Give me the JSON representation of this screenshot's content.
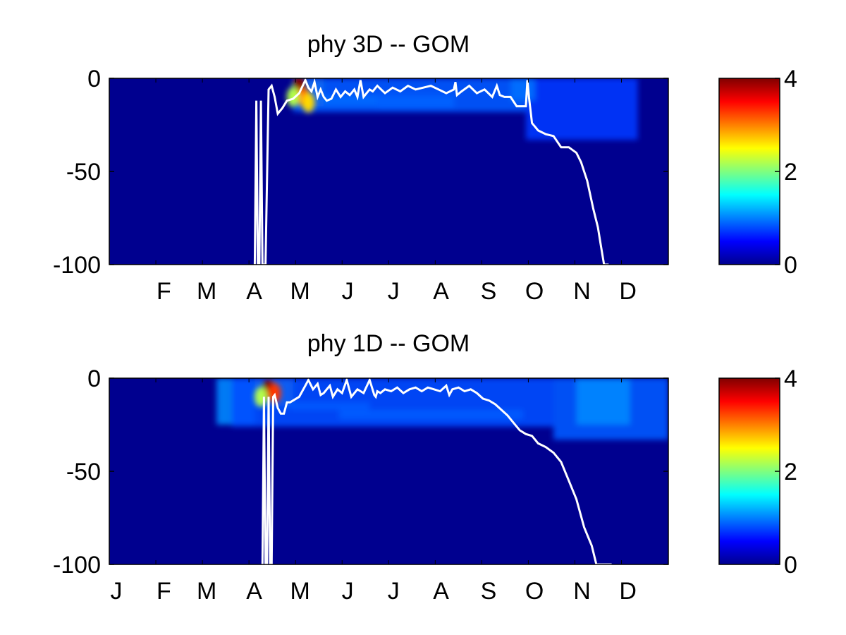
{
  "chart_data": [
    {
      "type": "heatmap",
      "title": "phy 3D   -- GOM",
      "xlabel": "",
      "ylabel": "",
      "x_ticks": [
        "F",
        "M",
        "A",
        "M",
        "J",
        "J",
        "A",
        "S",
        "O",
        "N",
        "D"
      ],
      "y_ticks": [
        "0",
        "-50",
        "-100"
      ],
      "ylim": [
        -100,
        0
      ],
      "xlim": [
        0,
        365
      ],
      "colorbar": {
        "range": [
          0,
          4
        ],
        "ticks": [
          "4",
          "2",
          "0"
        ],
        "colormap": "jet"
      },
      "line_color": "#ffffff",
      "mixed_layer_depth": {
        "x": [
          95,
          96,
          97,
          98,
          99,
          100,
          102,
          104,
          106,
          108,
          110,
          113,
          116,
          120,
          124,
          128,
          130,
          132,
          134,
          136,
          138,
          140,
          142,
          145,
          148,
          151,
          154,
          157,
          160,
          162,
          164,
          166,
          168,
          170,
          172,
          175,
          180,
          185,
          190,
          195,
          200,
          205,
          210,
          215,
          220,
          225,
          226,
          227,
          230,
          235,
          240,
          245,
          250,
          253,
          255,
          258,
          262,
          266,
          270,
          272,
          273,
          274,
          276,
          280,
          285,
          290,
          295,
          300,
          305,
          308,
          312,
          316,
          319,
          321,
          323,
          325,
          326
        ],
        "y": [
          -100,
          -12,
          -100,
          -100,
          -12,
          -100,
          -100,
          -6,
          -4,
          -10,
          -19,
          -16,
          -12,
          -11,
          -8,
          -1,
          -5,
          -7,
          -2,
          -10,
          -6,
          -10,
          -12,
          -11,
          -6,
          -10,
          -7,
          -9,
          -6,
          -10,
          -1,
          -10,
          -8,
          -6,
          -7,
          -4,
          -8,
          -5,
          -7,
          -4,
          -6,
          -5,
          -4,
          -6,
          -8,
          -6,
          -2,
          -9,
          -7,
          -4,
          -8,
          -6,
          -10,
          -4,
          -9,
          -10,
          -10,
          -15,
          -15,
          -15,
          -1,
          -10,
          -24,
          -28,
          -30,
          -31,
          -37,
          -37,
          -40,
          -45,
          -55,
          -70,
          -80,
          -90,
          -100,
          -100,
          -100
        ]
      },
      "hotspots": [
        {
          "x": 124,
          "y": -4,
          "value": 4.0
        },
        {
          "x": 127,
          "y": -10,
          "value": 3.0
        },
        {
          "x": 130,
          "y": -13,
          "value": 2.5
        },
        {
          "x": 120,
          "y": -10,
          "value": 2.0
        }
      ],
      "bands": [
        {
          "x0": 120,
          "x1": 140,
          "y0": 0,
          "y1": -15,
          "value": 1.8
        },
        {
          "x0": 140,
          "x1": 175,
          "y0": -9,
          "y1": -15,
          "value": 1.2
        },
        {
          "x0": 175,
          "x1": 225,
          "y0": -9,
          "y1": -16,
          "value": 0.9
        },
        {
          "x0": 120,
          "x1": 272,
          "y0": 0,
          "y1": -18,
          "value": 0.5
        },
        {
          "x0": 272,
          "x1": 345,
          "y0": 0,
          "y1": -33,
          "value": 0.35
        },
        {
          "x0": 262,
          "x1": 278,
          "y0": 0,
          "y1": -12,
          "value": 0.6
        }
      ]
    },
    {
      "type": "heatmap",
      "title": "phy 1D   -- GOM",
      "xlabel": "",
      "ylabel": "",
      "x_ticks": [
        "J",
        "F",
        "M",
        "A",
        "M",
        "J",
        "J",
        "A",
        "S",
        "O",
        "N",
        "D"
      ],
      "y_ticks": [
        "0",
        "-50",
        "-100"
      ],
      "ylim": [
        -100,
        0
      ],
      "xlim": [
        0,
        365
      ],
      "colorbar": {
        "range": [
          0,
          4
        ],
        "ticks": [
          "4",
          "2",
          "0"
        ],
        "colormap": "jet"
      },
      "line_color": "#ffffff",
      "mixed_layer_depth": {
        "x": [
          100,
          101,
          102,
          103,
          104,
          105,
          106,
          107,
          108,
          110,
          112,
          114,
          116,
          118,
          120,
          124,
          128,
          130,
          133,
          136,
          138,
          140,
          142,
          144,
          146,
          149,
          152,
          155,
          158,
          162,
          166,
          170,
          173,
          174,
          175,
          177,
          180,
          184,
          188,
          192,
          196,
          200,
          204,
          208,
          212,
          216,
          220,
          222,
          224,
          228,
          232,
          236,
          240,
          244,
          248,
          252,
          256,
          260,
          264,
          268,
          272,
          276,
          280,
          285,
          290,
          295,
          300,
          305,
          310,
          315,
          318,
          320,
          322,
          324,
          326,
          328
        ],
        "y": [
          -100,
          -10,
          -100,
          -100,
          -10,
          -100,
          -100,
          -10,
          -9,
          -16,
          -19,
          -19,
          -13,
          -13,
          -12,
          -10,
          -4,
          -1,
          -6,
          -3,
          -9,
          -8,
          -6,
          -4,
          -10,
          -6,
          -8,
          -1,
          -10,
          -6,
          -8,
          -1,
          -9,
          -10,
          -7,
          -8,
          -6,
          -7,
          -5,
          -8,
          -6,
          -5,
          -7,
          -5,
          -6,
          -7,
          -4,
          -9,
          -6,
          -5,
          -7,
          -6,
          -8,
          -11,
          -12,
          -14,
          -17,
          -20,
          -24,
          -28,
          -30,
          -31,
          -35,
          -37,
          -40,
          -45,
          -55,
          -65,
          -80,
          -90,
          -100,
          -100,
          -100,
          -100,
          -100,
          -100
        ]
      },
      "hotspots": [
        {
          "x": 104,
          "y": -6,
          "value": 4.0
        },
        {
          "x": 108,
          "y": -8,
          "value": 3.2
        },
        {
          "x": 99,
          "y": -10,
          "value": 2.0
        }
      ],
      "bands": [
        {
          "x0": 70,
          "x1": 95,
          "y0": 0,
          "y1": -25,
          "value": 0.7
        },
        {
          "x0": 95,
          "x1": 120,
          "y0": 0,
          "y1": -15,
          "value": 1.8
        },
        {
          "x0": 118,
          "x1": 170,
          "y0": -13,
          "y1": -17,
          "value": 1.0
        },
        {
          "x0": 150,
          "x1": 270,
          "y0": -17,
          "y1": -22,
          "value": 1.1
        },
        {
          "x0": 80,
          "x1": 290,
          "y0": 0,
          "y1": -26,
          "value": 0.45
        },
        {
          "x0": 290,
          "x1": 365,
          "y0": 0,
          "y1": -33,
          "value": 0.5
        },
        {
          "x0": 305,
          "x1": 340,
          "y0": 0,
          "y1": -25,
          "value": 0.7
        }
      ]
    }
  ]
}
